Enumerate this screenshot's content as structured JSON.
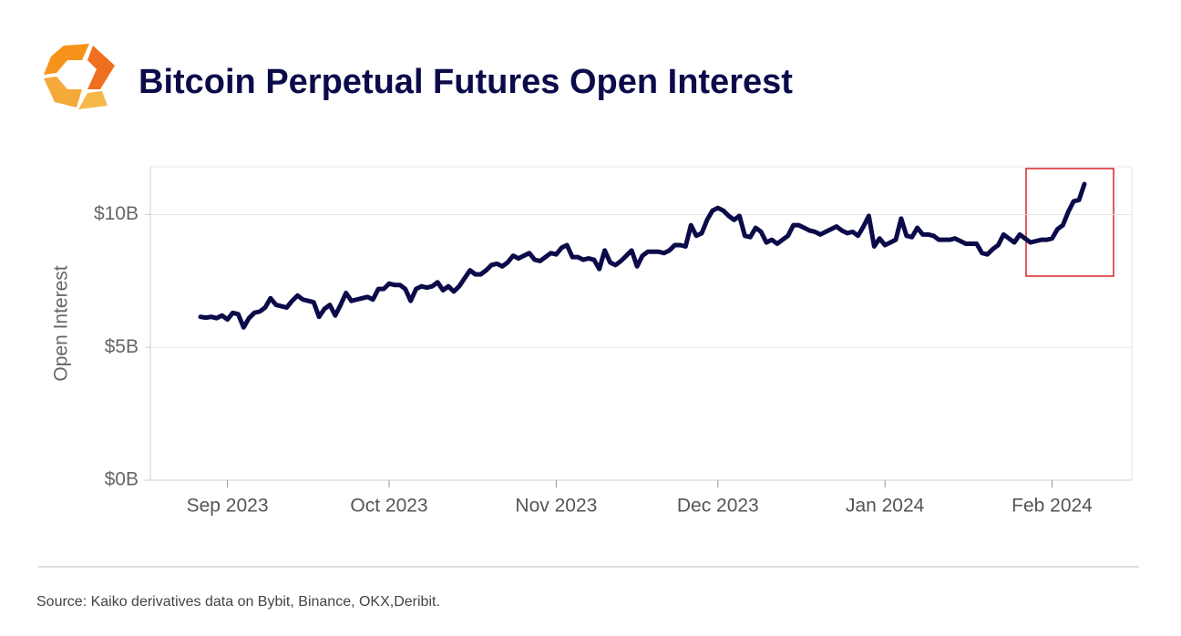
{
  "chart_data": {
    "type": "line",
    "title": "Bitcoin Perpetual Futures Open Interest",
    "y_label": "Open Interest",
    "source": "Source: Kaiko derivatives data on Bybit, Binance, OKX,Deribit.",
    "categories": [
      null,
      null,
      null,
      null,
      null,
      "Sep 2023",
      null,
      null,
      null,
      null,
      null,
      null,
      null,
      null,
      null,
      null,
      null,
      null,
      null,
      null,
      null,
      null,
      null,
      null,
      null,
      null,
      null,
      null,
      null,
      null,
      null,
      null,
      null,
      null,
      null,
      "Oct 2023",
      null,
      null,
      null,
      null,
      null,
      null,
      null,
      null,
      null,
      null,
      null,
      null,
      null,
      null,
      null,
      null,
      null,
      null,
      null,
      null,
      null,
      null,
      null,
      null,
      null,
      null,
      null,
      null,
      null,
      null,
      "Nov 2023",
      null,
      null,
      null,
      null,
      null,
      null,
      null,
      null,
      null,
      null,
      null,
      null,
      null,
      null,
      null,
      null,
      null,
      null,
      null,
      null,
      null,
      null,
      null,
      null,
      null,
      null,
      null,
      null,
      null,
      "Dec 2023",
      null,
      null,
      null,
      null,
      null,
      null,
      null,
      null,
      null,
      null,
      null,
      null,
      null,
      null,
      null,
      null,
      null,
      null,
      null,
      null,
      null,
      null,
      null,
      null,
      null,
      null,
      null,
      null,
      null,
      null,
      "Jan 2024",
      null,
      null,
      null,
      null,
      null,
      null,
      null,
      null,
      null,
      null,
      null,
      null,
      null,
      null,
      null,
      null,
      null,
      null,
      null,
      null,
      null,
      null,
      null,
      null,
      null,
      null,
      null,
      null,
      null,
      null,
      "Feb 2024",
      null,
      null,
      null,
      null,
      null,
      null
    ],
    "values": [
      6.15,
      6.12,
      6.15,
      6.1,
      6.2,
      6.05,
      6.3,
      6.25,
      5.75,
      6.1,
      6.3,
      6.35,
      6.5,
      6.85,
      6.6,
      6.55,
      6.5,
      6.75,
      6.95,
      6.8,
      6.75,
      6.7,
      6.15,
      6.45,
      6.6,
      6.2,
      6.6,
      7.05,
      6.75,
      6.8,
      6.85,
      6.9,
      6.8,
      7.2,
      7.2,
      7.4,
      7.35,
      7.35,
      7.2,
      6.75,
      7.2,
      7.3,
      7.25,
      7.3,
      7.45,
      7.15,
      7.3,
      7.1,
      7.3,
      7.6,
      7.9,
      7.75,
      7.75,
      7.9,
      8.1,
      8.15,
      8.05,
      8.2,
      8.45,
      8.35,
      8.45,
      8.55,
      8.3,
      8.25,
      8.4,
      8.55,
      8.5,
      8.75,
      8.85,
      8.4,
      8.4,
      8.3,
      8.35,
      8.3,
      7.95,
      8.65,
      8.2,
      8.1,
      8.25,
      8.45,
      8.65,
      8.05,
      8.45,
      8.6,
      8.6,
      8.6,
      8.55,
      8.65,
      8.85,
      8.85,
      8.8,
      9.6,
      9.2,
      9.3,
      9.8,
      10.15,
      10.25,
      10.15,
      9.95,
      9.8,
      9.95,
      9.2,
      9.15,
      9.5,
      9.35,
      8.95,
      9.05,
      8.9,
      9.05,
      9.2,
      9.6,
      9.6,
      9.5,
      9.4,
      9.35,
      9.25,
      9.35,
      9.45,
      9.55,
      9.4,
      9.3,
      9.35,
      9.2,
      9.55,
      9.95,
      8.8,
      9.1,
      8.85,
      8.95,
      9.05,
      9.85,
      9.2,
      9.15,
      9.5,
      9.25,
      9.25,
      9.2,
      9.05,
      9.05,
      9.05,
      9.1,
      9.0,
      8.9,
      8.9,
      8.9,
      8.55,
      8.5,
      8.7,
      8.85,
      9.25,
      9.1,
      8.95,
      9.25,
      9.1,
      8.95,
      9.0,
      9.05,
      9.05,
      9.1,
      9.45,
      9.6,
      10.1,
      10.5,
      10.55,
      11.15
    ],
    "color": "#0b0b4a",
    "ylim": [
      0,
      11.8
    ],
    "yticks": [
      {
        "value": 0,
        "label": "$0B"
      },
      {
        "value": 5,
        "label": "$5B"
      },
      {
        "value": 10,
        "label": "$10B"
      }
    ],
    "grid": true
  }
}
